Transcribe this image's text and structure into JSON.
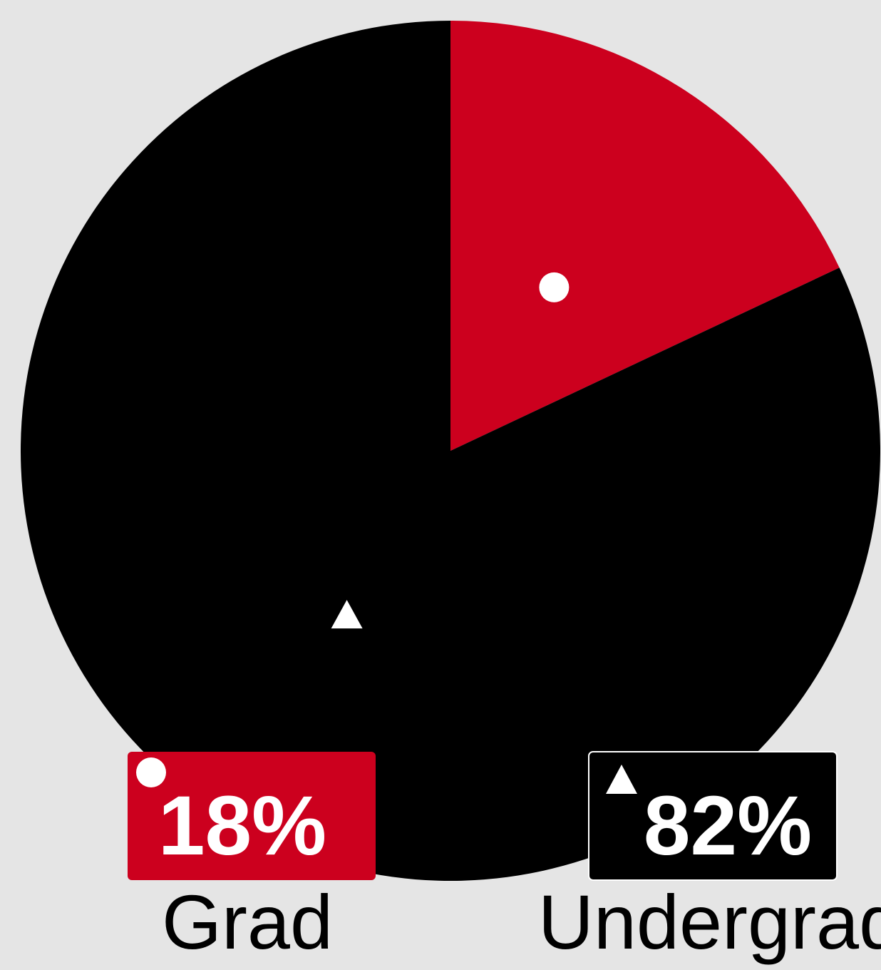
{
  "chart_data": {
    "type": "pie",
    "categories": [
      "Grad",
      "Undergrad"
    ],
    "values": [
      18,
      82
    ],
    "value_labels": [
      "18%",
      "82%"
    ],
    "colors": [
      "#cc001e",
      "#000000"
    ],
    "markers": [
      "circle",
      "triangle"
    ],
    "start": "12 o'clock",
    "direction": "clockwise",
    "legend": "bottom"
  },
  "background": "#e5e5e5"
}
